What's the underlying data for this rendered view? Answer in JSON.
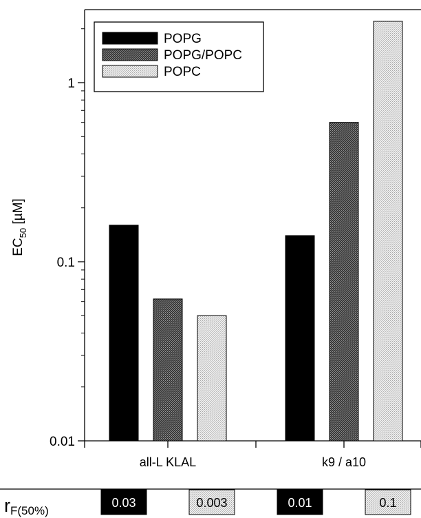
{
  "chart_data": {
    "type": "bar",
    "ylabel": "EC",
    "ylabel_sub": "50",
    "ylabel_unit": " [µM]",
    "yscale": "log",
    "ylim": [
      0.01,
      2.3
    ],
    "yticks": [
      0.01,
      0.1,
      1
    ],
    "ytick_labels": [
      "0.01",
      "0.1",
      "1"
    ],
    "categories": [
      "all-L KLAL",
      "k9 / a10"
    ],
    "series": [
      {
        "name": "POPG",
        "values": [
          0.16,
          0.14
        ],
        "color": "#000000",
        "pattern": "solid"
      },
      {
        "name": "POPG/POPC",
        "values": [
          0.062,
          0.6
        ],
        "color": "#555555",
        "pattern": "dark-stipple"
      },
      {
        "name": "POPC",
        "values": [
          0.05,
          2.2
        ],
        "color": "#dddddd",
        "pattern": "light-stipple"
      }
    ],
    "legend_position": "top-left",
    "grid": false
  },
  "rf_row": {
    "label": "r",
    "label_sub": "F(50%)",
    "values": [
      {
        "text": "0.03",
        "series": "POPG",
        "category": "all-L KLAL"
      },
      {
        "text": "0.003",
        "series": "POPC",
        "category": "all-L KLAL"
      },
      {
        "text": "0.01",
        "series": "POPG",
        "category": "k9 / a10"
      },
      {
        "text": "0.1",
        "series": "POPC",
        "category": "k9 / a10"
      }
    ]
  }
}
